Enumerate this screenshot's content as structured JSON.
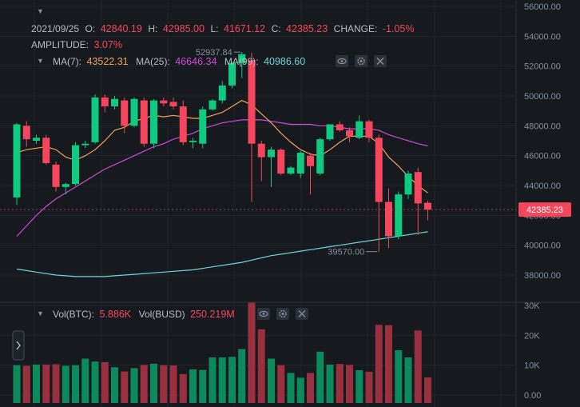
{
  "header": {
    "date": "2021/09/25",
    "open_label": "O:",
    "open": "42840.19",
    "high_label": "H:",
    "high": "42985.00",
    "low_label": "L:",
    "low": "41671.12",
    "close_label": "C:",
    "close": "42385.23",
    "change_label": "CHANGE:",
    "change": "-1.05%",
    "amplitude_label": "AMPLITUDE:",
    "amplitude": "3.07%"
  },
  "ma": {
    "ma7_label": "MA(7):",
    "ma7": "43522.31",
    "ma25_label": "MA(25):",
    "ma25": "46646.34",
    "ma99_label": "MA(99):",
    "ma99": "40986.60"
  },
  "volume_header": {
    "vol_btc_label": "Vol(BTC):",
    "vol_btc": "5.886K",
    "vol_busd_label": "Vol(BUSD)",
    "vol_busd": "250.219M"
  },
  "annotations": {
    "high_mark": "52937.84",
    "low_mark": "39570.00",
    "last_price": "42385.23"
  },
  "colors": {
    "up": "#0ecb81",
    "down": "#f6465d",
    "ma7": "#f0a35a",
    "ma25": "#d249d7",
    "ma99": "#6fd4d8",
    "background": "#161a1e"
  },
  "chart_data": [
    {
      "type": "candlestick",
      "price_axis": {
        "ticks": [
          "56000.00",
          "54000.00",
          "52000.00",
          "50000.00",
          "48000.00",
          "46000.00",
          "44000.00",
          "42000.00",
          "40000.00",
          "38000.00"
        ],
        "ylim": [
          37000,
          56000
        ]
      },
      "candles": [
        {
          "o": 43200,
          "h": 48200,
          "l": 42700,
          "c": 48100
        },
        {
          "o": 48000,
          "h": 48300,
          "l": 46600,
          "c": 47100
        },
        {
          "o": 47000,
          "h": 47400,
          "l": 46800,
          "c": 47200
        },
        {
          "o": 47200,
          "h": 47400,
          "l": 45400,
          "c": 45500
        },
        {
          "o": 45400,
          "h": 45600,
          "l": 43600,
          "c": 43900
        },
        {
          "o": 43900,
          "h": 44200,
          "l": 43400,
          "c": 44100
        },
        {
          "o": 44100,
          "h": 46900,
          "l": 44000,
          "c": 46700
        },
        {
          "o": 46700,
          "h": 47000,
          "l": 46500,
          "c": 46800
        },
        {
          "o": 46900,
          "h": 50100,
          "l": 46800,
          "c": 49900
        },
        {
          "o": 49900,
          "h": 50100,
          "l": 48900,
          "c": 49300
        },
        {
          "o": 49300,
          "h": 50000,
          "l": 49100,
          "c": 49800
        },
        {
          "o": 49700,
          "h": 49900,
          "l": 47500,
          "c": 48000
        },
        {
          "o": 48000,
          "h": 49900,
          "l": 47900,
          "c": 49800
        },
        {
          "o": 49700,
          "h": 49900,
          "l": 46600,
          "c": 46800
        },
        {
          "o": 46800,
          "h": 49800,
          "l": 46500,
          "c": 49700
        },
        {
          "o": 49700,
          "h": 49900,
          "l": 49300,
          "c": 49500
        },
        {
          "o": 49600,
          "h": 49900,
          "l": 49100,
          "c": 49300
        },
        {
          "o": 49300,
          "h": 49700,
          "l": 46700,
          "c": 46900
        },
        {
          "o": 46900,
          "h": 47200,
          "l": 46500,
          "c": 47000
        },
        {
          "o": 46800,
          "h": 49300,
          "l": 46500,
          "c": 49100
        },
        {
          "o": 49100,
          "h": 49800,
          "l": 49000,
          "c": 49700
        },
        {
          "o": 49700,
          "h": 51000,
          "l": 49500,
          "c": 50700
        },
        {
          "o": 50700,
          "h": 52300,
          "l": 50500,
          "c": 52200
        },
        {
          "o": 52200,
          "h": 52937.84,
          "l": 51200,
          "c": 52800
        },
        {
          "o": 52400,
          "h": 52900,
          "l": 42900,
          "c": 46800
        },
        {
          "o": 46800,
          "h": 47000,
          "l": 44300,
          "c": 45900
        },
        {
          "o": 45900,
          "h": 46600,
          "l": 43900,
          "c": 46400
        },
        {
          "o": 46400,
          "h": 46500,
          "l": 44700,
          "c": 44800
        },
        {
          "o": 44800,
          "h": 45300,
          "l": 44700,
          "c": 45200
        },
        {
          "o": 44800,
          "h": 46300,
          "l": 44500,
          "c": 46200
        },
        {
          "o": 46000,
          "h": 46200,
          "l": 43400,
          "c": 45300
        },
        {
          "o": 44800,
          "h": 47200,
          "l": 44700,
          "c": 47100
        },
        {
          "o": 47100,
          "h": 48100,
          "l": 47000,
          "c": 48100
        },
        {
          "o": 48100,
          "h": 48300,
          "l": 47600,
          "c": 47700
        },
        {
          "o": 47700,
          "h": 47900,
          "l": 46900,
          "c": 47300
        },
        {
          "o": 47200,
          "h": 48700,
          "l": 47100,
          "c": 48300
        },
        {
          "o": 48300,
          "h": 48400,
          "l": 46900,
          "c": 47200
        },
        {
          "o": 47200,
          "h": 47400,
          "l": 39570,
          "c": 42900
        },
        {
          "o": 42900,
          "h": 43800,
          "l": 39800,
          "c": 40600
        },
        {
          "o": 40600,
          "h": 43600,
          "l": 40400,
          "c": 43400
        },
        {
          "o": 43400,
          "h": 45000,
          "l": 43100,
          "c": 44800
        },
        {
          "o": 44900,
          "h": 45200,
          "l": 40700,
          "c": 42800
        },
        {
          "o": 42840.19,
          "h": 42985,
          "l": 41671.12,
          "c": 42385.23
        }
      ],
      "ma7": [
        46200,
        46400,
        46500,
        46600,
        46400,
        45900,
        45700,
        46000,
        46400,
        47000,
        47700,
        47900,
        48300,
        48500,
        48700,
        48600,
        48700,
        48600,
        48500,
        48500,
        48700,
        48900,
        49300,
        49700,
        49400,
        48800,
        48200,
        47500,
        46900,
        46400,
        46100,
        46000,
        46400,
        46900,
        47300,
        47300,
        47300,
        46800,
        45900,
        45300,
        44600,
        44000,
        43500
      ],
      "ma25": [
        40600,
        41300,
        42000,
        42600,
        43100,
        43500,
        43900,
        44300,
        44700,
        45100,
        45400,
        45700,
        46000,
        46300,
        46600,
        46800,
        47100,
        47300,
        47500,
        47800,
        48000,
        48200,
        48300,
        48400,
        48400,
        48400,
        48300,
        48200,
        48100,
        48100,
        48100,
        48000,
        48000,
        47900,
        47800,
        47800,
        47800,
        47700,
        47400,
        47200,
        47000,
        46800,
        46650
      ],
      "ma99": [
        38400,
        38300,
        38200,
        38100,
        38000,
        37950,
        37900,
        37900,
        37900,
        37900,
        37950,
        38000,
        38050,
        38100,
        38150,
        38200,
        38250,
        38300,
        38350,
        38450,
        38550,
        38650,
        38750,
        38850,
        39000,
        39150,
        39300,
        39400,
        39500,
        39600,
        39700,
        39800,
        39900,
        40000,
        40100,
        40200,
        40300,
        40400,
        40500,
        40600,
        40700,
        40800,
        40900
      ]
    },
    {
      "type": "bar",
      "name": "",
      "volume_axis": {
        "ticks": [
          "30K",
          "20K",
          "10K",
          "0.00"
        ],
        "ylim": [
          0,
          30000
        ]
      },
      "values": [
        10000,
        9800,
        10200,
        10200,
        10300,
        9800,
        10000,
        12200,
        11200,
        11000,
        9300,
        7900,
        9000,
        10100,
        10500,
        10000,
        9900,
        7000,
        8600,
        8400,
        12600,
        12600,
        12800,
        15400,
        31000,
        22000,
        12200,
        10000,
        7400,
        5800,
        7400,
        14500,
        10200,
        10400,
        10100,
        8300,
        7800,
        23500,
        23400,
        15000,
        12600,
        21600,
        5886
      ]
    }
  ]
}
